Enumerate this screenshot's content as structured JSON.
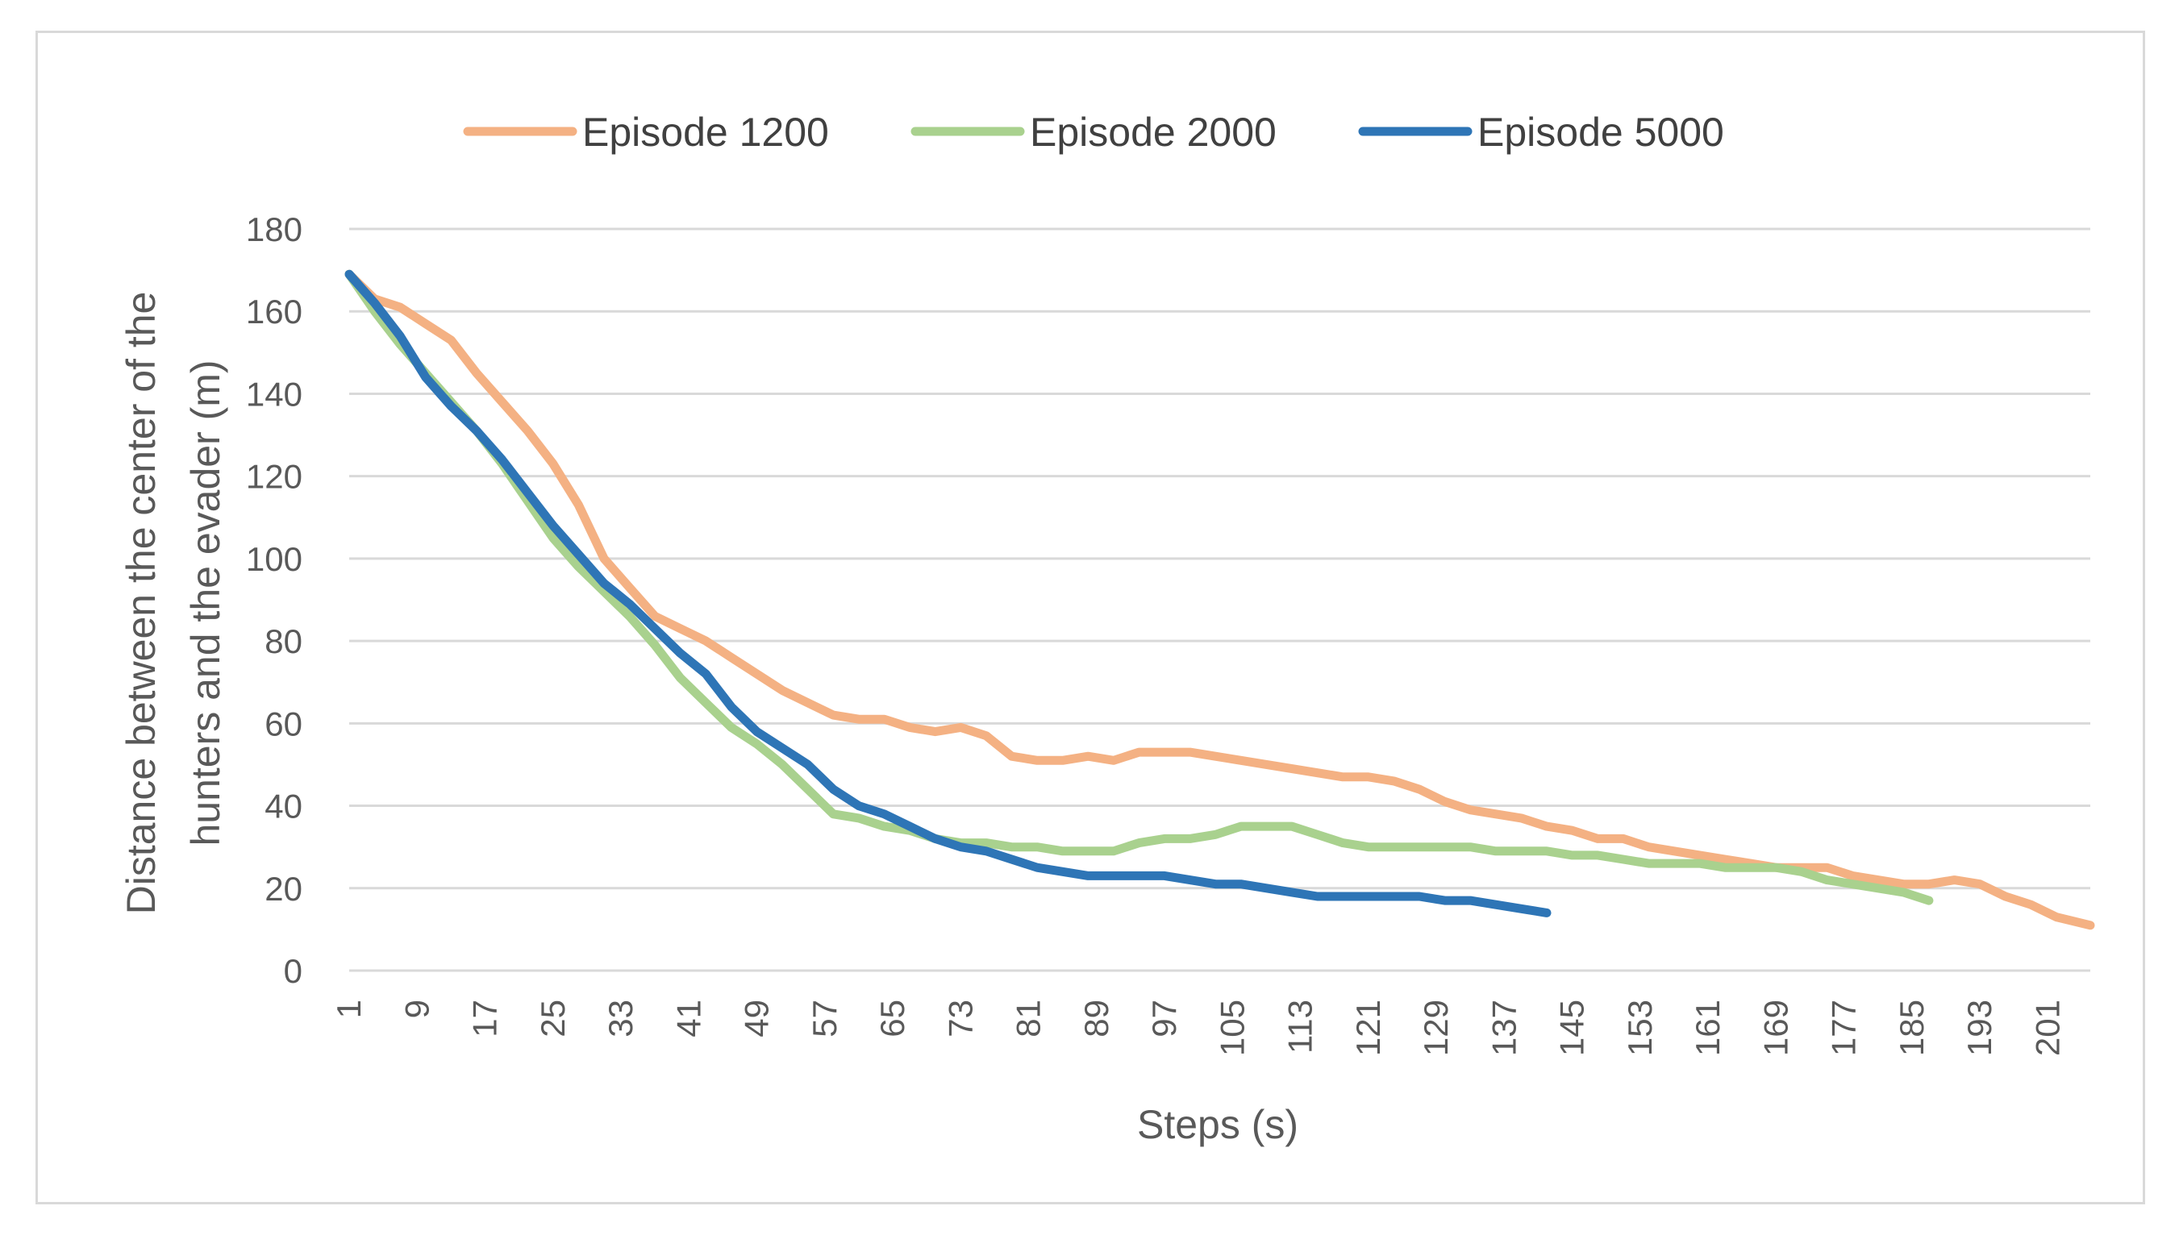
{
  "chart_data": {
    "type": "line",
    "title": "",
    "xlabel": "Steps (s)",
    "ylabel_lines": [
      "Distance between the center of the",
      "hunters and the evader (m)"
    ],
    "ylabel": "Distance between the center of the hunters and the evader (m)",
    "ylim": [
      0,
      180
    ],
    "yticks": [
      0,
      20,
      40,
      60,
      80,
      100,
      120,
      140,
      160,
      180
    ],
    "xlim": [
      1,
      206
    ],
    "xticks": [
      1,
      9,
      17,
      25,
      33,
      41,
      49,
      57,
      65,
      73,
      81,
      89,
      97,
      105,
      113,
      121,
      129,
      137,
      145,
      153,
      161,
      169,
      177,
      185,
      193,
      201
    ],
    "grid": true,
    "legend_position": "top",
    "series": [
      {
        "name": "Episode 1200",
        "color": "#f4b183",
        "x": [
          1,
          4,
          7,
          10,
          13,
          16,
          19,
          22,
          25,
          28,
          31,
          34,
          37,
          40,
          43,
          46,
          49,
          52,
          55,
          58,
          61,
          64,
          67,
          70,
          73,
          76,
          79,
          82,
          85,
          88,
          91,
          94,
          97,
          100,
          103,
          106,
          109,
          112,
          115,
          118,
          121,
          124,
          127,
          130,
          133,
          136,
          139,
          142,
          145,
          148,
          151,
          154,
          157,
          160,
          163,
          166,
          169,
          172,
          175,
          178,
          181,
          184,
          187,
          190,
          193,
          196,
          199,
          202,
          206
        ],
        "y": [
          169,
          163,
          161,
          157,
          153,
          145,
          138,
          131,
          123,
          113,
          100,
          93,
          86,
          83,
          80,
          76,
          72,
          68,
          65,
          62,
          61,
          61,
          59,
          58,
          59,
          57,
          52,
          51,
          51,
          52,
          51,
          53,
          53,
          53,
          52,
          51,
          50,
          49,
          48,
          47,
          47,
          46,
          44,
          41,
          39,
          38,
          37,
          35,
          34,
          32,
          32,
          30,
          29,
          28,
          27,
          26,
          25,
          25,
          25,
          23,
          22,
          21,
          21,
          22,
          21,
          18,
          16,
          13,
          11
        ]
      },
      {
        "name": "Episode 2000",
        "color": "#a9d18e",
        "x": [
          1,
          4,
          7,
          10,
          13,
          16,
          19,
          22,
          25,
          28,
          31,
          34,
          37,
          40,
          43,
          46,
          49,
          52,
          55,
          58,
          61,
          64,
          67,
          70,
          73,
          76,
          79,
          82,
          85,
          88,
          91,
          94,
          97,
          100,
          103,
          106,
          109,
          112,
          115,
          118,
          121,
          124,
          127,
          130,
          133,
          136,
          139,
          142,
          145,
          148,
          151,
          154,
          157,
          160,
          163,
          166,
          169,
          172,
          175,
          178,
          181,
          184,
          187
        ],
        "y": [
          169,
          160,
          152,
          145,
          138,
          131,
          123,
          114,
          105,
          98,
          92,
          86,
          79,
          71,
          65,
          59,
          55,
          50,
          44,
          38,
          37,
          35,
          34,
          32,
          31,
          31,
          30,
          30,
          29,
          29,
          29,
          31,
          32,
          32,
          33,
          35,
          35,
          35,
          33,
          31,
          30,
          30,
          30,
          30,
          30,
          29,
          29,
          29,
          28,
          28,
          27,
          26,
          26,
          26,
          25,
          25,
          25,
          24,
          22,
          21,
          20,
          19,
          17
        ]
      },
      {
        "name": "Episode 5000",
        "color": "#2e75b6",
        "x": [
          1,
          4,
          7,
          10,
          13,
          16,
          19,
          22,
          25,
          28,
          31,
          34,
          37,
          40,
          43,
          46,
          49,
          52,
          55,
          58,
          61,
          64,
          67,
          70,
          73,
          76,
          79,
          82,
          85,
          88,
          91,
          94,
          97,
          100,
          103,
          106,
          109,
          112,
          115,
          118,
          121,
          124,
          127,
          130,
          133,
          136,
          139,
          142
        ],
        "y": [
          169,
          162,
          154,
          144,
          137,
          131,
          124,
          116,
          108,
          101,
          94,
          89,
          83,
          77,
          72,
          64,
          58,
          54,
          50,
          44,
          40,
          38,
          35,
          32,
          30,
          29,
          27,
          25,
          24,
          23,
          23,
          23,
          23,
          22,
          21,
          21,
          20,
          19,
          18,
          18,
          18,
          18,
          18,
          17,
          17,
          16,
          15,
          14
        ]
      }
    ]
  }
}
